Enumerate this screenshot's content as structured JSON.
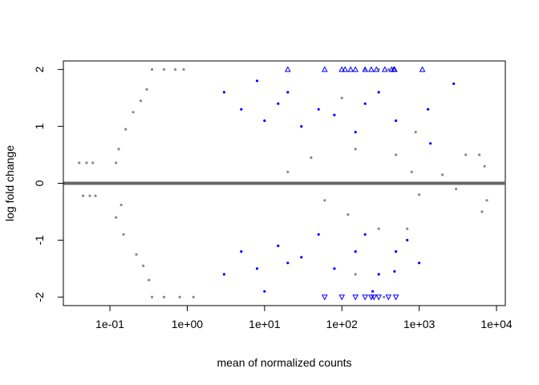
{
  "chart_data": {
    "type": "scatter",
    "title": "",
    "xlabel": "mean of normalized counts",
    "ylabel": "log fold change",
    "x_scale": "log10",
    "xlim": [
      0.025,
      13000
    ],
    "ylim": [
      -2.15,
      2.15
    ],
    "x_ticks": [
      0.1,
      1,
      10,
      100,
      1000,
      10000
    ],
    "x_tick_labels": [
      "1e-01",
      "1e+00",
      "1e+01",
      "1e+02",
      "1e+03",
      "1e+04"
    ],
    "y_ticks": [
      -2,
      -1,
      0,
      1,
      2
    ],
    "y_tick_labels": [
      "-2",
      "-1",
      "0",
      "1",
      "2"
    ],
    "y_clip": 2,
    "reference_line": {
      "y": 0,
      "color": "#666666"
    },
    "colors": {
      "not_significant": "#888888",
      "significant": "#0000ff"
    },
    "series": [
      {
        "name": "",
        "color": "#888888",
        "points": [
          [
            0.04,
            0.36
          ],
          [
            0.045,
            -0.22
          ],
          [
            0.05,
            0.36
          ],
          [
            0.055,
            -0.22
          ],
          [
            0.06,
            0.36
          ],
          [
            0.065,
            -0.22
          ],
          [
            0.12,
            0.36
          ],
          [
            0.14,
            -0.38
          ],
          [
            0.12,
            -0.6
          ],
          [
            0.13,
            0.6
          ],
          [
            0.15,
            -0.9
          ],
          [
            0.16,
            0.95
          ],
          [
            0.2,
            1.25
          ],
          [
            0.22,
            -1.25
          ],
          [
            0.25,
            1.45
          ],
          [
            0.27,
            -1.45
          ],
          [
            0.3,
            1.65
          ],
          [
            0.32,
            -1.7
          ],
          [
            0.35,
            2
          ],
          [
            0.5,
            2
          ],
          [
            0.7,
            2
          ],
          [
            0.9,
            2
          ],
          [
            0.35,
            -2
          ],
          [
            0.5,
            -2
          ],
          [
            0.8,
            -2
          ],
          [
            1.2,
            -2
          ],
          [
            200,
            2
          ],
          [
            300,
            2
          ],
          [
            400,
            2
          ],
          [
            250,
            -2
          ],
          [
            350,
            -2
          ],
          [
            20,
            0.2
          ],
          [
            40,
            0.45
          ],
          [
            60,
            -0.3
          ],
          [
            150,
            0.6
          ],
          [
            120,
            -0.55
          ],
          [
            300,
            -0.8
          ],
          [
            500,
            0.5
          ],
          [
            800,
            0.2
          ],
          [
            1000,
            -0.2
          ],
          [
            2000,
            0.15
          ],
          [
            3000,
            -0.1
          ],
          [
            4000,
            0.5
          ],
          [
            6000,
            0.5
          ],
          [
            7000,
            0.3
          ],
          [
            6500,
            -0.5
          ],
          [
            7500,
            -0.3
          ],
          [
            700,
            -0.8
          ],
          [
            900,
            0.9
          ],
          [
            150,
            -1.6
          ],
          [
            100,
            1.5
          ]
        ]
      },
      {
        "name": "",
        "color": "#0000ff",
        "points": [
          [
            3,
            1.6
          ],
          [
            5,
            1.3
          ],
          [
            8,
            1.8
          ],
          [
            10,
            1.1
          ],
          [
            15,
            1.4
          ],
          [
            20,
            1.6
          ],
          [
            30,
            1.0
          ],
          [
            50,
            1.3
          ],
          [
            80,
            1.2
          ],
          [
            150,
            0.9
          ],
          [
            200,
            1.4
          ],
          [
            300,
            1.6
          ],
          [
            500,
            1.1
          ],
          [
            1300,
            1.3
          ],
          [
            1400,
            0.7
          ],
          [
            2800,
            1.75
          ],
          [
            3,
            -1.6
          ],
          [
            5,
            -1.2
          ],
          [
            8,
            -1.5
          ],
          [
            10,
            -1.9
          ],
          [
            15,
            -1.1
          ],
          [
            20,
            -1.4
          ],
          [
            30,
            -1.3
          ],
          [
            50,
            -0.9
          ],
          [
            80,
            -1.5
          ],
          [
            150,
            -1.2
          ],
          [
            200,
            -0.9
          ],
          [
            300,
            -1.6
          ],
          [
            500,
            -1.2
          ],
          [
            700,
            -1.0
          ],
          [
            1000,
            -1.4
          ],
          [
            480,
            -1.55
          ],
          [
            250,
            -1.9
          ]
        ]
      }
    ],
    "clipped_points": {
      "up": [
        20,
        60,
        100,
        110,
        130,
        150,
        200,
        240,
        280,
        360,
        440,
        470,
        480,
        1100
      ],
      "down": [
        60,
        100,
        150,
        200,
        240,
        260,
        300,
        400,
        500
      ]
    }
  }
}
